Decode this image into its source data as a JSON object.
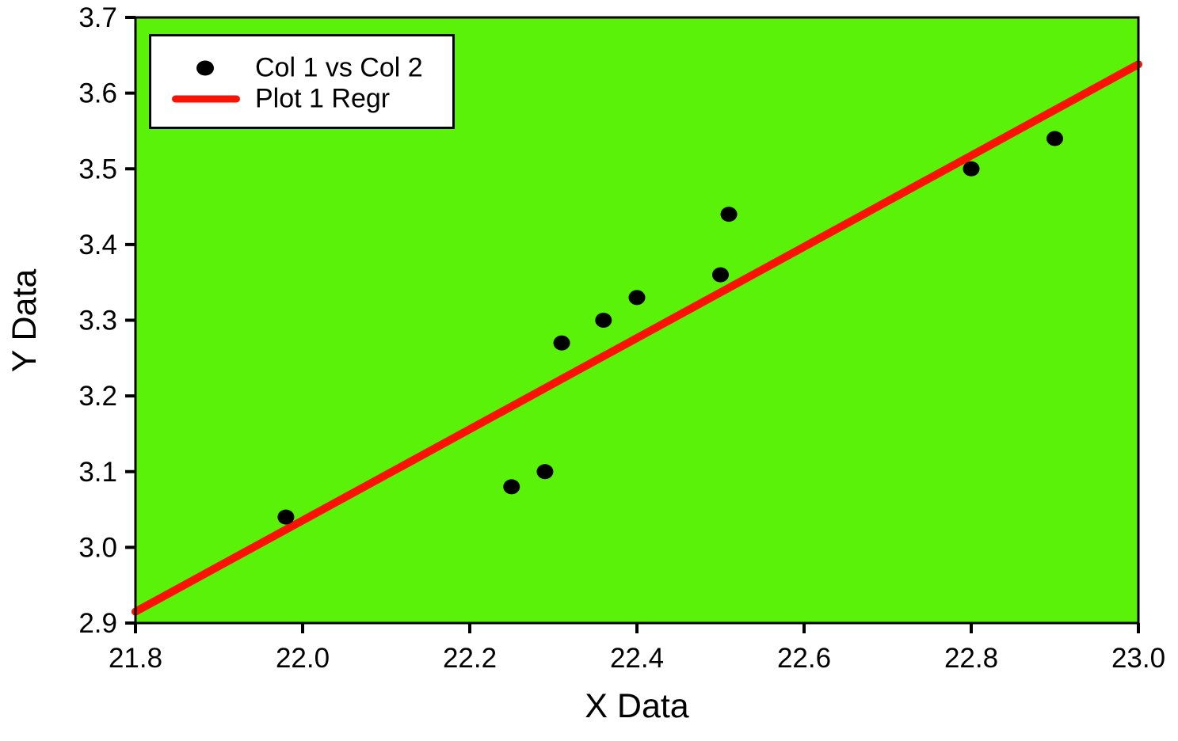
{
  "chart_data": {
    "type": "scatter",
    "title": "",
    "xlabel": "X Data",
    "ylabel": "Y Data",
    "xlim": [
      21.8,
      23.0
    ],
    "ylim": [
      2.9,
      3.7
    ],
    "x_ticks": [
      21.8,
      22.0,
      22.2,
      22.4,
      22.6,
      22.8,
      23.0
    ],
    "y_ticks": [
      2.9,
      3.0,
      3.1,
      3.2,
      3.3,
      3.4,
      3.5,
      3.6,
      3.7
    ],
    "tick_decimals": 1,
    "grid": false,
    "plot_background_color": "#5bf20a",
    "frame_color": "#000000",
    "text_color": "#000000",
    "legend": {
      "position": "top-left",
      "background": "#ffffff",
      "border_color": "#000000"
    },
    "series": [
      {
        "name": "Col 1 vs Col 2",
        "type": "scatter",
        "marker": "filled-circle",
        "color": "#000000",
        "points": [
          [
            21.98,
            3.04
          ],
          [
            22.25,
            3.08
          ],
          [
            22.29,
            3.1
          ],
          [
            22.31,
            3.27
          ],
          [
            22.36,
            3.3
          ],
          [
            22.4,
            3.33
          ],
          [
            22.5,
            3.36
          ],
          [
            22.51,
            3.44
          ],
          [
            22.8,
            3.5
          ],
          [
            22.9,
            3.54
          ]
        ]
      },
      {
        "name": "Plot 1 Regr",
        "type": "line",
        "color": "#fb1205",
        "points": [
          [
            21.8,
            2.915
          ],
          [
            23.0,
            3.638
          ]
        ]
      }
    ]
  }
}
